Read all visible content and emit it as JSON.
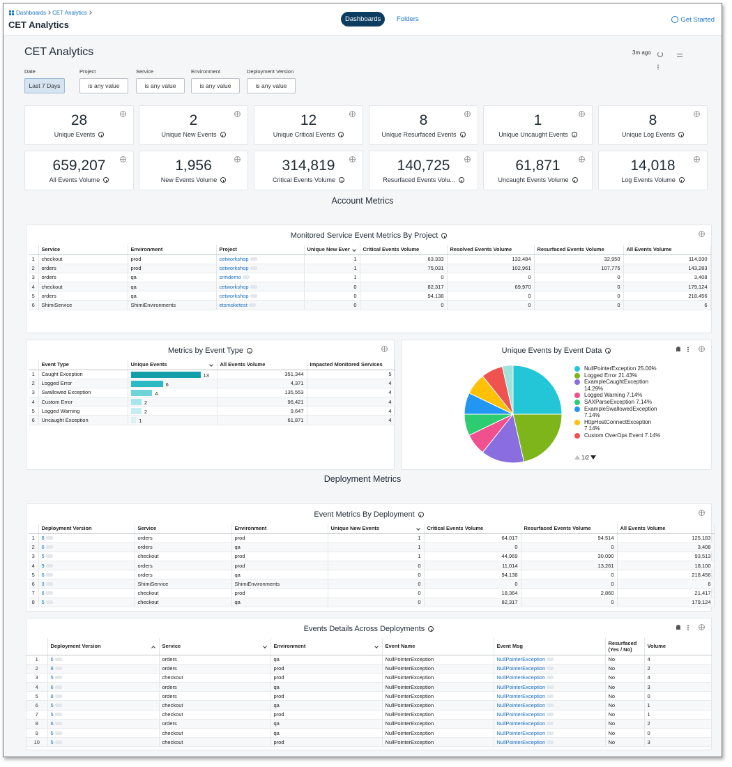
{
  "header": {
    "breadcrumb": [
      "Dashboards",
      "CET Analytics"
    ],
    "title": "CET Analytics",
    "tabs": [
      "Dashboards",
      "Folders"
    ],
    "get_started": "Get Started"
  },
  "dashboard": {
    "title": "CET Analytics",
    "refreshed": "3m ago"
  },
  "filters": [
    {
      "label": "Date",
      "value": "Last 7 Days"
    },
    {
      "label": "Project",
      "value": "is any value"
    },
    {
      "label": "Service",
      "value": "is any value"
    },
    {
      "label": "Environment",
      "value": "is any value"
    },
    {
      "label": "Deployment Version",
      "value": "is any value"
    }
  ],
  "tiles": [
    {
      "value": "28",
      "label": "Unique Events"
    },
    {
      "value": "2",
      "label": "Unique New Events"
    },
    {
      "value": "12",
      "label": "Unique Critical Events"
    },
    {
      "value": "8",
      "label": "Unique Resurfaced Events"
    },
    {
      "value": "1",
      "label": "Unique Uncaught Events"
    },
    {
      "value": "8",
      "label": "Unique Log Events"
    },
    {
      "value": "659,207",
      "label": "All Events Volume"
    },
    {
      "value": "1,956",
      "label": "New Events Volume"
    },
    {
      "value": "314,819",
      "label": "Critical Events Volume"
    },
    {
      "value": "140,725",
      "label": "Resurfaced Events Volu..."
    },
    {
      "value": "61,871",
      "label": "Uncaught Events Volume"
    },
    {
      "value": "14,018",
      "label": "Log Events Volume"
    }
  ],
  "sections": [
    "Account Metrics",
    "Deployment Metrics"
  ],
  "project_table": {
    "title": "Monitored Service Event Metrics By Project",
    "columns": [
      "Service",
      "Environment",
      "Project",
      "Unique New Ever",
      "Critical Events Volume",
      "Resolved Events Volume",
      "Resurfaced Events Volume",
      "All Events Volume"
    ],
    "rows": [
      [
        "1",
        "checkout",
        "prod",
        "cetworkshop",
        "1",
        "63,333",
        "132,484",
        "32,950",
        "114,930"
      ],
      [
        "2",
        "orders",
        "prod",
        "cetworkshop",
        "1",
        "75,031",
        "102,961",
        "107,775",
        "143,283"
      ],
      [
        "3",
        "orders",
        "qa",
        "srmdemo",
        "1",
        "0",
        "0",
        "0",
        "3,408"
      ],
      [
        "4",
        "checkout",
        "qa",
        "cetworkshop",
        "0",
        "82,317",
        "69,970",
        "0",
        "179,124"
      ],
      [
        "5",
        "orders",
        "qa",
        "cetworkshop",
        "0",
        "94,138",
        "0",
        "0",
        "218,456"
      ],
      [
        "6",
        "ShimiService",
        "ShimiEnvironments",
        "etsmoketest",
        "0",
        "0",
        "0",
        "0",
        "6"
      ]
    ]
  },
  "event_type_table": {
    "title": "Metrics by Event Type",
    "columns": [
      "Event Type",
      "Unique Events",
      "All Events Volume",
      "Impacted Monitored Services"
    ],
    "rows": [
      [
        "1",
        "Caught Exception",
        13,
        "351,344",
        "5"
      ],
      [
        "2",
        "Logged Error",
        6,
        "4,371",
        "4"
      ],
      [
        "3",
        "Swallowed Exception",
        4,
        "135,553",
        "4"
      ],
      [
        "4",
        "Custom Error",
        2,
        "96,421",
        "4"
      ],
      [
        "5",
        "Logged Warning",
        2,
        "9,647",
        "4"
      ],
      [
        "6",
        "Uncaught Exception",
        1,
        "61,871",
        "4"
      ]
    ]
  },
  "chart_data": {
    "type": "pie",
    "title": "Unique Events by Event Data",
    "categories": [
      "NullPointerException",
      "Logged Error",
      "ExampleCaughtException",
      "Logged Warning",
      "SAXParseException",
      "ExampleSwallowedException",
      "HttpHostConnectException",
      "Custom OverOps Event"
    ],
    "values": [
      25.0,
      21.43,
      14.29,
      7.14,
      7.14,
      7.14,
      7.14,
      7.14
    ],
    "value_labels": [
      "25.00%",
      "21.43%",
      "14.29%",
      "7.14%",
      "7.14%",
      "7.14%",
      "7.14%",
      "7.14%"
    ],
    "colors": [
      "#22c6d6",
      "#7db51b",
      "#8a6ee0",
      "#f0508e",
      "#2ecc71",
      "#2196f3",
      "#ffc107",
      "#ef5350"
    ],
    "legend_page": "1/2"
  },
  "deployment_table": {
    "title": "Event Metrics By Deployment",
    "columns": [
      "Deployment Version",
      "Service",
      "Environment",
      "Unique New Events",
      "Critical Events Volume",
      "Resurfaced Events Volume",
      "All Events Volume"
    ],
    "rows": [
      [
        "1",
        "8",
        "orders",
        "prod",
        "1",
        "64,017",
        "94,514",
        "125,183"
      ],
      [
        "2",
        "6",
        "orders",
        "qa",
        "1",
        "0",
        "0",
        "3,408"
      ],
      [
        "3",
        "5",
        "checkout",
        "prod",
        "1",
        "44,969",
        "30,090",
        "93,513"
      ],
      [
        "4",
        "9",
        "orders",
        "prod",
        "0",
        "11,014",
        "13,261",
        "18,100"
      ],
      [
        "5",
        "6",
        "orders",
        "qa",
        "0",
        "94,138",
        "0",
        "218,456"
      ],
      [
        "6",
        "3",
        "ShimiService",
        "ShimiEnvironments",
        "0",
        "0",
        "0",
        "6"
      ],
      [
        "7",
        "6",
        "checkout",
        "prod",
        "0",
        "18,364",
        "2,860",
        "21,417"
      ],
      [
        "8",
        "5",
        "checkout",
        "qa",
        "0",
        "82,317",
        "0",
        "179,124"
      ]
    ]
  },
  "details_table": {
    "title": "Events Details Across Deployments",
    "columns": [
      "Deployment Version",
      "Service",
      "Environment",
      "Event Name",
      "Event Msg",
      "Resurfaced (Yes / No)",
      "Volume"
    ],
    "rows": [
      [
        "1",
        "6",
        "orders",
        "qa",
        "NullPointerException",
        "NullPointerException",
        "No",
        "4"
      ],
      [
        "2",
        "8",
        "orders",
        "prod",
        "NullPointerException",
        "NullPointerException",
        "No",
        "2"
      ],
      [
        "3",
        "5",
        "checkout",
        "prod",
        "NullPointerException",
        "NullPointerException",
        "No",
        "4"
      ],
      [
        "4",
        "6",
        "orders",
        "qa",
        "NullPointerException",
        "NullPointerException",
        "No",
        "3"
      ],
      [
        "5",
        "8",
        "orders",
        "prod",
        "NullPointerException",
        "NullPointerException",
        "No",
        "0"
      ],
      [
        "6",
        "5",
        "checkout",
        "qa",
        "NullPointerException",
        "NullPointerException",
        "No",
        "1"
      ],
      [
        "7",
        "5",
        "checkout",
        "prod",
        "NullPointerException",
        "NullPointerException",
        "No",
        "1"
      ],
      [
        "8",
        "6",
        "orders",
        "qa",
        "NullPointerException",
        "NullPointerException",
        "No",
        "2"
      ],
      [
        "9",
        "5",
        "checkout",
        "qa",
        "NullPointerException",
        "NullPointerException",
        "No",
        "0"
      ],
      [
        "10",
        "5",
        "checkout",
        "prod",
        "NullPointerException",
        "NullPointerException",
        "No",
        "3"
      ]
    ]
  }
}
